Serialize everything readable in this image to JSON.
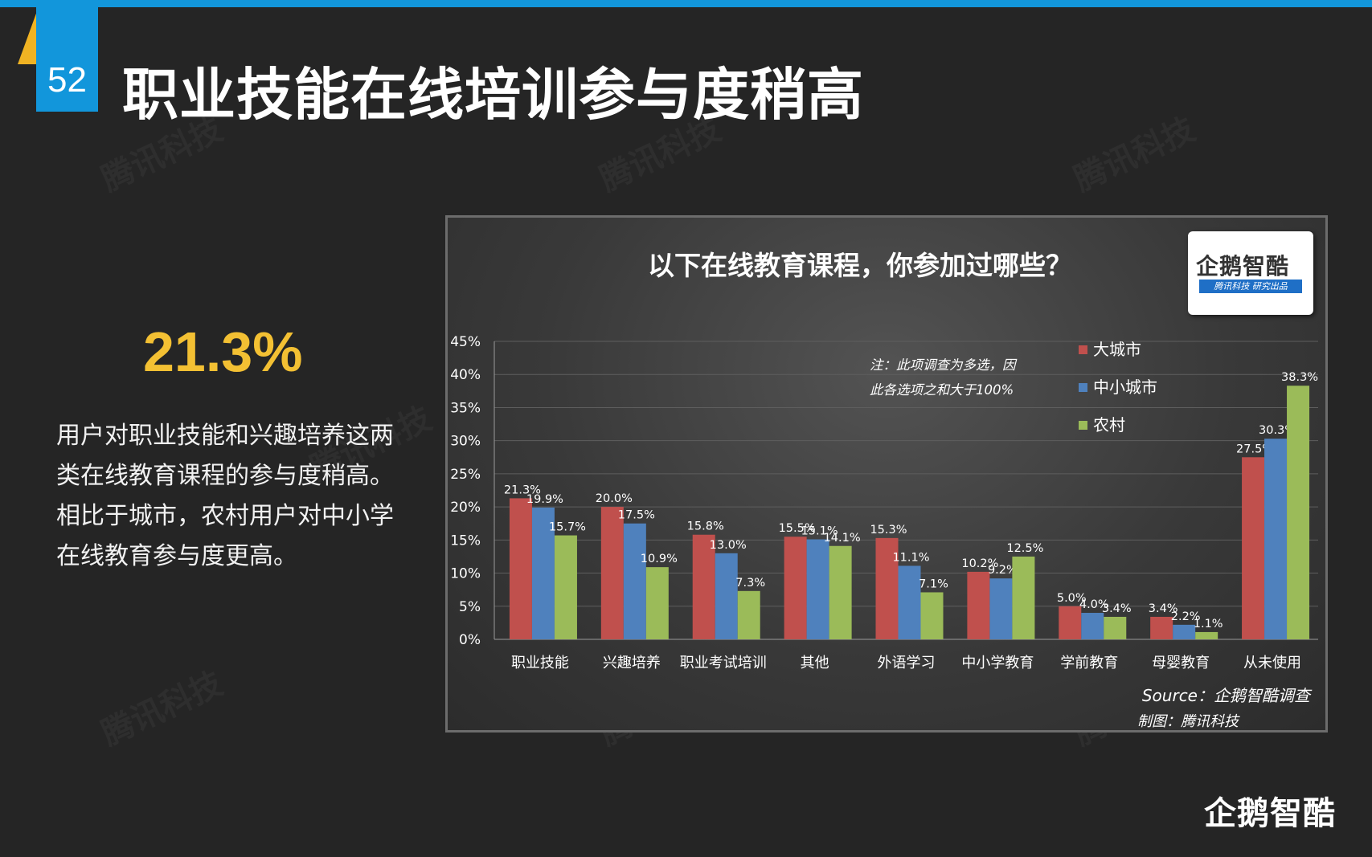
{
  "header": {
    "page_number": "52",
    "title": "职业技能在线培训参与度稍高"
  },
  "highlight": {
    "value": "21.3%",
    "description": "用户对职业技能和兴趣培养这两类在线教育课程的参与度稍高。相比于城市，农村用户对中小学在线教育参与度更高。"
  },
  "watermark": "腾讯科技",
  "logo": {
    "name": "企鹅智酷",
    "tagline": "腾讯科技 研究出品"
  },
  "brand": "企鹅智酷",
  "colors": {
    "accent_blue": "#1296db",
    "accent_yellow": "#f3c033",
    "series_red": "#c0504d",
    "series_blue": "#4f81bd",
    "series_green": "#9bbb59"
  },
  "chart_data": {
    "type": "bar",
    "title": "以下在线教育课程，你参加过哪些？",
    "note": [
      "注：此项调查为多选，因",
      "此各选项之和大于100%"
    ],
    "source": "Source：企鹅智酷调查",
    "credit": "制图：腾讯科技",
    "categories": [
      "职业技能",
      "兴趣培养",
      "职业考试培训",
      "其他",
      "外语学习",
      "中小学教育",
      "学前教育",
      "母婴教育",
      "从未使用"
    ],
    "series": [
      {
        "name": "大城市",
        "color": "#c0504d",
        "values": [
          21.3,
          20.0,
          15.8,
          15.5,
          15.3,
          10.2,
          5.0,
          3.4,
          27.5
        ]
      },
      {
        "name": "中小城市",
        "color": "#4f81bd",
        "values": [
          19.9,
          17.5,
          13.0,
          15.1,
          11.1,
          9.2,
          4.0,
          2.2,
          30.3
        ]
      },
      {
        "name": "农村",
        "color": "#9bbb59",
        "values": [
          15.7,
          10.9,
          7.3,
          14.1,
          7.1,
          12.5,
          3.4,
          1.1,
          38.3
        ]
      }
    ],
    "yticks": [
      "0%",
      "5%",
      "10%",
      "15%",
      "20%",
      "25%",
      "30%",
      "35%",
      "40%",
      "45%"
    ],
    "ylim": [
      0,
      45
    ],
    "unit": "%",
    "grid": true,
    "legend": "top-right"
  }
}
